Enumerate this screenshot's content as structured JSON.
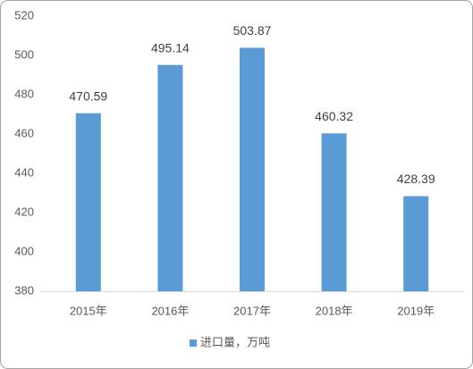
{
  "chart_data": {
    "type": "bar",
    "categories": [
      "2015年",
      "2016年",
      "2017年",
      "2018年",
      "2019年"
    ],
    "series": [
      {
        "name": "进口量，万吨",
        "color": "#5b9bd5",
        "values": [
          470.59,
          495.14,
          503.87,
          460.32,
          428.39
        ]
      }
    ],
    "ylim": [
      380,
      520
    ],
    "yticks": [
      380,
      400,
      420,
      440,
      460,
      480,
      500,
      520
    ],
    "grid": false,
    "legend": "bottom",
    "data_labels": true
  }
}
